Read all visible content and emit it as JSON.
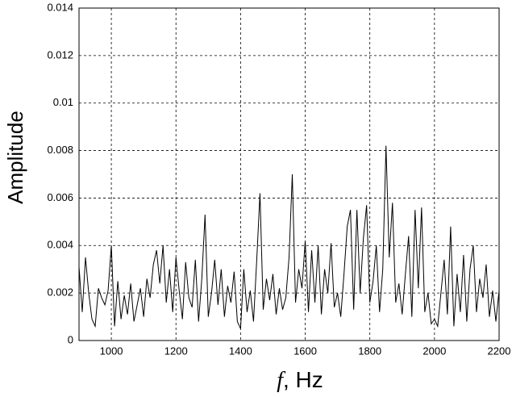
{
  "chart_data": {
    "type": "line",
    "ylabel": "Amplitude",
    "xlabel": {
      "symbol": "f",
      "unit": ", Hz"
    },
    "xlim": [
      900,
      2200
    ],
    "xticks": [
      1000,
      1200,
      1400,
      1600,
      1800,
      2000,
      2200
    ],
    "ylim": [
      0,
      0.014
    ],
    "yticks": [
      0,
      0.002,
      0.004,
      0.006,
      0.008,
      0.01,
      0.012,
      0.014
    ],
    "grid": true,
    "x": [
      900,
      910,
      920,
      930,
      940,
      950,
      960,
      970,
      980,
      990,
      1000,
      1010,
      1020,
      1030,
      1040,
      1050,
      1060,
      1070,
      1080,
      1090,
      1100,
      1110,
      1120,
      1130,
      1140,
      1150,
      1160,
      1170,
      1180,
      1190,
      1200,
      1210,
      1220,
      1230,
      1240,
      1250,
      1260,
      1270,
      1280,
      1290,
      1300,
      1310,
      1320,
      1330,
      1340,
      1350,
      1360,
      1370,
      1380,
      1390,
      1400,
      1410,
      1420,
      1430,
      1440,
      1450,
      1460,
      1470,
      1480,
      1490,
      1500,
      1510,
      1520,
      1530,
      1540,
      1550,
      1560,
      1570,
      1580,
      1590,
      1600,
      1610,
      1620,
      1630,
      1640,
      1650,
      1660,
      1670,
      1680,
      1690,
      1700,
      1710,
      1720,
      1730,
      1740,
      1750,
      1760,
      1770,
      1780,
      1790,
      1800,
      1810,
      1820,
      1830,
      1840,
      1850,
      1860,
      1870,
      1880,
      1890,
      1900,
      1910,
      1920,
      1930,
      1940,
      1950,
      1960,
      1970,
      1980,
      1990,
      2000,
      2010,
      2020,
      2030,
      2040,
      2050,
      2060,
      2070,
      2080,
      2090,
      2100,
      2110,
      2120,
      2130,
      2140,
      2150,
      2160,
      2170,
      2180,
      2190,
      2200
    ],
    "series": [
      {
        "color": "#000000",
        "values": [
          0.0031,
          0.0012,
          0.0035,
          0.002,
          0.0009,
          0.0006,
          0.0022,
          0.0018,
          0.0015,
          0.0021,
          0.004,
          0.0006,
          0.0025,
          0.0009,
          0.0019,
          0.0011,
          0.0024,
          0.0008,
          0.0015,
          0.0022,
          0.001,
          0.0026,
          0.0018,
          0.0032,
          0.0038,
          0.0024,
          0.004,
          0.0016,
          0.003,
          0.0012,
          0.0035,
          0.0021,
          0.0009,
          0.0033,
          0.0018,
          0.0014,
          0.0034,
          0.0008,
          0.0026,
          0.0053,
          0.001,
          0.002,
          0.0034,
          0.0015,
          0.003,
          0.001,
          0.0023,
          0.0016,
          0.0029,
          0.0008,
          0.0005,
          0.003,
          0.0012,
          0.0021,
          0.0008,
          0.0034,
          0.0062,
          0.0013,
          0.0026,
          0.0017,
          0.0028,
          0.0011,
          0.0022,
          0.0013,
          0.0018,
          0.0035,
          0.007,
          0.0016,
          0.003,
          0.0022,
          0.0042,
          0.0012,
          0.0038,
          0.0016,
          0.004,
          0.0011,
          0.003,
          0.002,
          0.0041,
          0.0014,
          0.002,
          0.001,
          0.0028,
          0.0048,
          0.0055,
          0.0013,
          0.0055,
          0.002,
          0.0043,
          0.0057,
          0.0016,
          0.0025,
          0.004,
          0.0012,
          0.003,
          0.0082,
          0.0035,
          0.0058,
          0.0016,
          0.0024,
          0.0011,
          0.0028,
          0.0044,
          0.001,
          0.0055,
          0.0022,
          0.0056,
          0.0012,
          0.002,
          0.0007,
          0.0009,
          0.0006,
          0.002,
          0.0034,
          0.0011,
          0.0048,
          0.0006,
          0.0028,
          0.0012,
          0.0036,
          0.0008,
          0.003,
          0.004,
          0.0012,
          0.0026,
          0.0018,
          0.0032,
          0.001,
          0.0021,
          0.0008,
          0.0021
        ]
      }
    ]
  }
}
